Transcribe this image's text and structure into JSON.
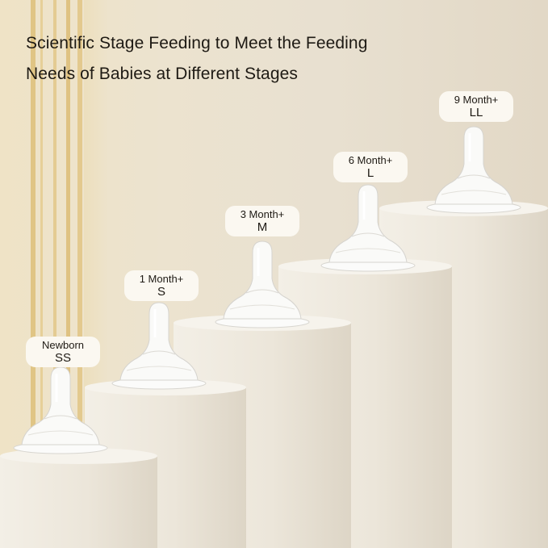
{
  "headline": {
    "line1": "Scientific Stage Feeding to Meet the Feeding",
    "line2": "Needs of Babies at Different Stages"
  },
  "stages": [
    {
      "age": "Newborn",
      "size": "SS"
    },
    {
      "age": "1 Month+",
      "size": "S"
    },
    {
      "age": "3 Month+",
      "size": "M"
    },
    {
      "age": "6 Month+",
      "size": "L"
    },
    {
      "age": "9 Month+",
      "size": "LL"
    }
  ],
  "colors": {
    "accent_gold": "#d9b870",
    "text": "#1e1a14",
    "label_bg": "#fbf8f1"
  }
}
